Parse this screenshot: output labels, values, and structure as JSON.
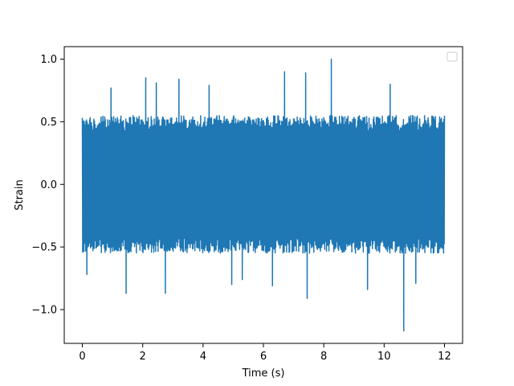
{
  "chart_data": {
    "type": "line",
    "title": "",
    "xlabel": "Time (s)",
    "ylabel": "Strain",
    "xlim": [
      -0.6,
      12.6
    ],
    "ylim": [
      -1.27,
      1.1
    ],
    "xticks": [
      0,
      2,
      4,
      6,
      8,
      10,
      12
    ],
    "xtick_labels": [
      "0",
      "2",
      "4",
      "6",
      "8",
      "10",
      "12"
    ],
    "yticks": [
      -1.0,
      -0.5,
      0.0,
      0.5,
      1.0
    ],
    "ytick_labels": [
      "−1.0",
      "−0.5",
      "0.0",
      "0.5",
      "1.0"
    ],
    "grid": false,
    "legend": {
      "location": "upper right",
      "entries": []
    },
    "series": [
      {
        "color": "#1f77b4",
        "x_range": [
          0,
          12
        ],
        "typical_envelope": [
          -0.5,
          0.5
        ],
        "peaks": [
          {
            "x": 0.95,
            "y": 0.77
          },
          {
            "x": 2.1,
            "y": 0.85
          },
          {
            "x": 2.45,
            "y": 0.81
          },
          {
            "x": 3.2,
            "y": 0.84
          },
          {
            "x": 4.2,
            "y": 0.79
          },
          {
            "x": 6.7,
            "y": 0.9
          },
          {
            "x": 7.4,
            "y": 0.89
          },
          {
            "x": 8.25,
            "y": 1.0
          },
          {
            "x": 10.2,
            "y": 0.8
          },
          {
            "x": 0.15,
            "y": -0.72
          },
          {
            "x": 1.45,
            "y": -0.87
          },
          {
            "x": 2.75,
            "y": -0.87
          },
          {
            "x": 4.95,
            "y": -0.8
          },
          {
            "x": 5.3,
            "y": -0.76
          },
          {
            "x": 6.3,
            "y": -0.81
          },
          {
            "x": 7.45,
            "y": -0.91
          },
          {
            "x": 9.45,
            "y": -0.84
          },
          {
            "x": 10.65,
            "y": -1.17
          },
          {
            "x": 11.05,
            "y": -0.79
          }
        ]
      }
    ]
  }
}
